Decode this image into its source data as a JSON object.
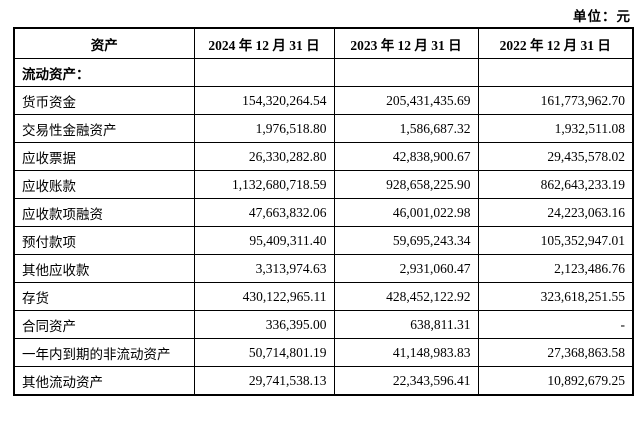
{
  "unit_label": "单位：元",
  "table": {
    "headers": [
      "资产",
      "2024 年 12 月 31 日",
      "2023 年 12 月 31 日",
      "2022 年 12 月 31 日"
    ],
    "rows": [
      {
        "label": "流动资产：",
        "v1": "",
        "v2": "",
        "v3": ""
      },
      {
        "label": "货币资金",
        "v1": "154,320,264.54",
        "v2": "205,431,435.69",
        "v3": "161,773,962.70"
      },
      {
        "label": "交易性金融资产",
        "v1": "1,976,518.80",
        "v2": "1,586,687.32",
        "v3": "1,932,511.08"
      },
      {
        "label": "应收票据",
        "v1": "26,330,282.80",
        "v2": "42,838,900.67",
        "v3": "29,435,578.02"
      },
      {
        "label": "应收账款",
        "v1": "1,132,680,718.59",
        "v2": "928,658,225.90",
        "v3": "862,643,233.19"
      },
      {
        "label": "应收款项融资",
        "v1": "47,663,832.06",
        "v2": "46,001,022.98",
        "v3": "24,223,063.16"
      },
      {
        "label": "预付款项",
        "v1": "95,409,311.40",
        "v2": "59,695,243.34",
        "v3": "105,352,947.01"
      },
      {
        "label": "其他应收款",
        "v1": "3,313,974.63",
        "v2": "2,931,060.47",
        "v3": "2,123,486.76"
      },
      {
        "label": "存货",
        "v1": "430,122,965.11",
        "v2": "428,452,122.92",
        "v3": "323,618,251.55"
      },
      {
        "label": "合同资产",
        "v1": "336,395.00",
        "v2": "638,811.31",
        "v3": "-"
      },
      {
        "label": "一年内到期的非流动资产",
        "v1": "50,714,801.19",
        "v2": "41,148,983.83",
        "v3": "27,368,863.58"
      },
      {
        "label": "其他流动资产",
        "v1": "29,741,538.13",
        "v2": "22,343,596.41",
        "v3": "10,892,679.25"
      }
    ]
  }
}
